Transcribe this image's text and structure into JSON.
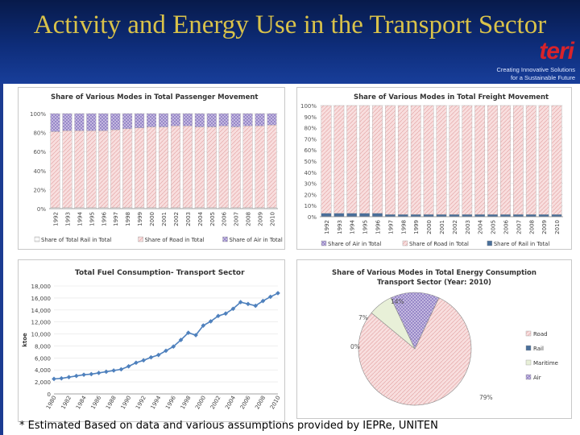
{
  "slide": {
    "title": "Activity and Energy Use in the Transport Sector",
    "footnote": "* Estimated Based on data and various assumptions provided by IEPRe, UNITEN",
    "logo": {
      "word": "teri",
      "tagline_1": "Creating Innovative Solutions",
      "tagline_2": "for a Sustainable Future"
    }
  },
  "colors": {
    "band": "#0e2d7a",
    "title": "#d9c24a",
    "logo_red": "#d8232a",
    "rail": "#ffffff",
    "road": "#f4cccc",
    "air": "#8e7cc3",
    "maritime": "#6e8fb8",
    "line": "#4f81bd"
  },
  "chart_data": [
    {
      "type": "bar",
      "stacked": true,
      "title": "Share of Various Modes in Total Passenger Movement",
      "categories": [
        "1992",
        "1993",
        "1994",
        "1995",
        "1996",
        "1997",
        "1998",
        "1999",
        "2000",
        "2001",
        "2002",
        "2003",
        "2004",
        "2005",
        "2006",
        "2007",
        "2008",
        "2009",
        "2010"
      ],
      "series": [
        {
          "name": "Share of Total Rail in Total",
          "values": [
            1,
            1,
            1,
            1,
            1,
            1,
            1,
            1,
            1,
            1,
            1,
            1,
            1,
            1,
            1,
            1,
            1,
            1,
            1
          ]
        },
        {
          "name": "Share of Road in Total",
          "values": [
            80,
            81,
            81,
            81,
            81,
            82,
            83,
            84,
            85,
            85,
            86,
            86,
            85,
            85,
            86,
            85,
            86,
            86,
            87
          ]
        },
        {
          "name": "Share of Air in Total",
          "values": [
            19,
            18,
            18,
            18,
            18,
            17,
            16,
            15,
            14,
            14,
            13,
            13,
            14,
            14,
            13,
            14,
            13,
            13,
            12
          ]
        }
      ],
      "yticks": [
        "0%",
        "20%",
        "40%",
        "60%",
        "80%",
        "100%"
      ],
      "ylim": [
        0,
        100
      ]
    },
    {
      "type": "bar",
      "stacked": true,
      "title": "Share of Various Modes in Total Freight Movement",
      "categories": [
        "1992",
        "1993",
        "1994",
        "1995",
        "1996",
        "1997",
        "1998",
        "1999",
        "2000",
        "2001",
        "2002",
        "2003",
        "2004",
        "2005",
        "2006",
        "2007",
        "2008",
        "2009",
        "2010"
      ],
      "series": [
        {
          "name": "Share of Air in Total",
          "values": [
            0,
            0,
            0,
            0,
            0,
            0,
            0,
            0,
            0,
            0,
            0,
            0,
            0,
            0,
            0,
            0,
            0,
            0,
            0
          ]
        },
        {
          "name": "Share of Road in Total",
          "values": [
            97,
            97,
            97,
            97,
            97,
            98,
            98,
            98,
            98,
            98,
            98,
            98,
            98,
            98,
            98,
            98,
            98,
            98,
            98
          ]
        },
        {
          "name": "Share of Rail in Total",
          "values": [
            3,
            3,
            3,
            3,
            3,
            2,
            2,
            2,
            2,
            2,
            2,
            2,
            2,
            2,
            2,
            2,
            2,
            2,
            2
          ]
        }
      ],
      "yticks": [
        "0%",
        "10%",
        "20%",
        "30%",
        "40%",
        "50%",
        "60%",
        "70%",
        "80%",
        "90%",
        "100%"
      ],
      "ylim": [
        0,
        100
      ]
    },
    {
      "type": "line",
      "title": "Total Fuel Consumption- Transport Sector",
      "ylabel": "ktoe",
      "x": [
        1980,
        1981,
        1982,
        1983,
        1984,
        1985,
        1986,
        1987,
        1988,
        1989,
        1990,
        1991,
        1992,
        1993,
        1994,
        1995,
        1996,
        1997,
        1998,
        1999,
        2000,
        2001,
        2002,
        2003,
        2004,
        2005,
        2006,
        2007,
        2008,
        2009,
        2010
      ],
      "values": [
        2500,
        2600,
        2800,
        3000,
        3200,
        3300,
        3500,
        3700,
        3900,
        4100,
        4600,
        5200,
        5600,
        6100,
        6500,
        7200,
        7900,
        9000,
        10200,
        9800,
        11400,
        12100,
        13000,
        13400,
        14200,
        15300,
        15000,
        14700,
        15500,
        16200,
        16800
      ],
      "xticks": [
        "1980",
        "1982",
        "1984",
        "1986",
        "1988",
        "1990",
        "1992",
        "1994",
        "1996",
        "1998",
        "2000",
        "2002",
        "2004",
        "2006",
        "2008",
        "2010"
      ],
      "yticks": [
        "0",
        "2,000",
        "4,000",
        "6,000",
        "8,000",
        "10,000",
        "12,000",
        "14,000",
        "16,000",
        "18,000"
      ],
      "ylim": [
        0,
        18000
      ]
    },
    {
      "type": "pie",
      "title": "Share of Various Modes in Total Energy Consumption",
      "subtitle": "Transport Sector (Year: 2010)",
      "slices": [
        {
          "label": "Road",
          "value": 79,
          "text": "79%"
        },
        {
          "label": "Rail",
          "value": 0,
          "text": "0%"
        },
        {
          "label": "Maritime",
          "value": 7,
          "text": "7%"
        },
        {
          "label": "Air",
          "value": 14,
          "text": "14%"
        }
      ],
      "legend": [
        "Road",
        "Rail",
        "Maritime",
        "Air"
      ]
    }
  ]
}
